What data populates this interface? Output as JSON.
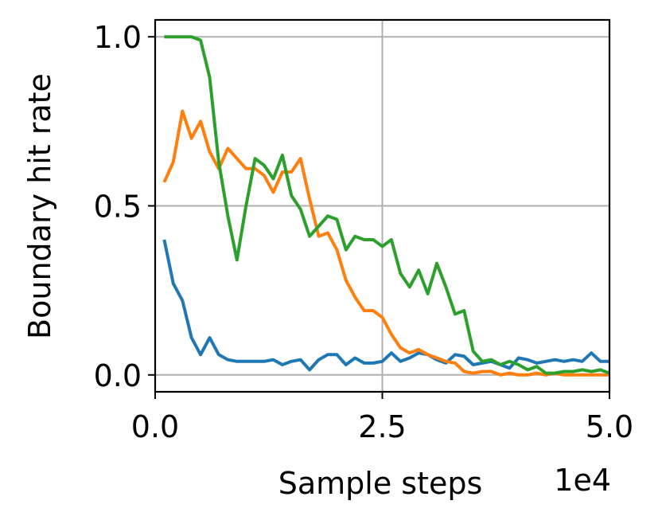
{
  "chart_data": {
    "type": "line",
    "xlabel": "Sample steps",
    "ylabel": "Boundary hit rate",
    "x_multiplier_label": "1e4",
    "xlim": [
      0,
      5
    ],
    "ylim": [
      -0.05,
      1.05
    ],
    "x_ticks": [
      0,
      2.5,
      5
    ],
    "x_tick_labels": [
      "0.0",
      "2.5",
      "5.0"
    ],
    "y_ticks": [
      0,
      0.5,
      1
    ],
    "y_tick_labels": [
      "0.0",
      "0.5",
      "1.0"
    ],
    "grid": true,
    "x": [
      0.1,
      0.2,
      0.3,
      0.4,
      0.5,
      0.6,
      0.7,
      0.8,
      0.9,
      1.0,
      1.1,
      1.2,
      1.3,
      1.4,
      1.5,
      1.6,
      1.7,
      1.8,
      1.9,
      2.0,
      2.1,
      2.2,
      2.3,
      2.4,
      2.5,
      2.6,
      2.7,
      2.8,
      2.9,
      3.0,
      3.1,
      3.2,
      3.3,
      3.4,
      3.5,
      3.6,
      3.7,
      3.8,
      3.9,
      4.0,
      4.1,
      4.2,
      4.3,
      4.4,
      4.5,
      4.6,
      4.7,
      4.8,
      4.9,
      5.0
    ],
    "series": [
      {
        "color": "#1f77b4",
        "values": [
          0.4,
          0.27,
          0.22,
          0.11,
          0.06,
          0.11,
          0.06,
          0.045,
          0.04,
          0.04,
          0.04,
          0.04,
          0.045,
          0.03,
          0.04,
          0.045,
          0.015,
          0.045,
          0.06,
          0.06,
          0.03,
          0.05,
          0.035,
          0.035,
          0.04,
          0.065,
          0.04,
          0.05,
          0.065,
          0.06,
          0.045,
          0.035,
          0.06,
          0.055,
          0.03,
          0.035,
          0.04,
          0.03,
          0.02,
          0.05,
          0.045,
          0.035,
          0.04,
          0.045,
          0.04,
          0.045,
          0.04,
          0.065,
          0.04,
          0.04
        ]
      },
      {
        "color": "#ff7f0e",
        "values": [
          0.57,
          0.63,
          0.78,
          0.7,
          0.75,
          0.66,
          0.61,
          0.67,
          0.64,
          0.61,
          0.61,
          0.59,
          0.54,
          0.6,
          0.6,
          0.64,
          0.52,
          0.41,
          0.42,
          0.37,
          0.28,
          0.23,
          0.19,
          0.19,
          0.17,
          0.12,
          0.08,
          0.065,
          0.075,
          0.06,
          0.05,
          0.04,
          0.035,
          0.01,
          0.005,
          0.01,
          0.01,
          0.0,
          0.005,
          0.0,
          0.0,
          0.005,
          0.0,
          0.005,
          0.0,
          0.0,
          0.0,
          0.0,
          0.0,
          0.0
        ]
      },
      {
        "color": "#2ca02c",
        "values": [
          1.0,
          1.0,
          1.0,
          1.0,
          0.99,
          0.88,
          0.63,
          0.47,
          0.34,
          0.5,
          0.64,
          0.62,
          0.58,
          0.65,
          0.53,
          0.49,
          0.41,
          0.44,
          0.47,
          0.46,
          0.37,
          0.41,
          0.4,
          0.4,
          0.38,
          0.4,
          0.3,
          0.26,
          0.31,
          0.24,
          0.33,
          0.26,
          0.18,
          0.19,
          0.07,
          0.04,
          0.045,
          0.03,
          0.04,
          0.03,
          0.015,
          0.025,
          0.005,
          0.005,
          0.01,
          0.01,
          0.015,
          0.01,
          0.015,
          0.005
        ]
      }
    ]
  }
}
